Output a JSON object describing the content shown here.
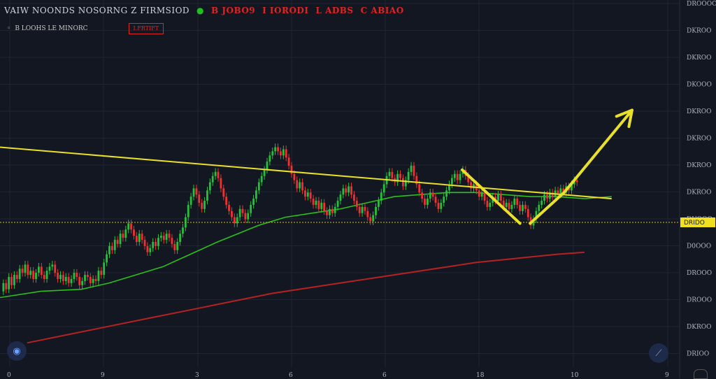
{
  "header": {
    "symbol": "VAIW NOONDS NOSORNG Z FIRMSIOD",
    "fields": [
      "B JOBO9",
      "I IORODI",
      "L ADBS",
      "C ABIAO"
    ],
    "indicator_label": "B LOOHS LE MINORC",
    "indicator_badge": "I.FRTIFT"
  },
  "colors": {
    "background": "#131722",
    "grid": "#1f2433",
    "bull": "#26c13b",
    "bear": "#ef3131",
    "ma_fast": "#2cc01a",
    "ma_slow": "#b62222",
    "trendline": "#e8e02a",
    "support": "#b0a020",
    "price_tag": "#f0e020"
  },
  "icons": {
    "left_button": "eye-icon",
    "right_button": "ruler-icon"
  },
  "chart_data": {
    "type": "candlestick",
    "x_tick_labels": [
      "0",
      "9",
      "3",
      "6",
      "6",
      "18",
      "10",
      "9"
    ],
    "y_tick_labels": [
      "DROOOO",
      "DKROO",
      "DKROO",
      "DKOOO",
      "DKROO",
      "DKROO",
      "DKROO",
      "DKROO",
      "DUOOO",
      "D0OOO",
      "DROOO",
      "DROOO",
      "DKROO",
      "DRIOO"
    ],
    "price_tag": "DRIDO",
    "ylim": [
      0,
      100
    ],
    "xlim": [
      0,
      1000
    ],
    "candles": [
      {
        "x": 5,
        "o": 30,
        "c": 34
      },
      {
        "x": 9,
        "o": 34,
        "c": 31
      },
      {
        "x": 13,
        "o": 31,
        "c": 37
      },
      {
        "x": 17,
        "o": 37,
        "c": 33
      },
      {
        "x": 21,
        "o": 33,
        "c": 38
      },
      {
        "x": 25,
        "o": 38,
        "c": 36
      },
      {
        "x": 29,
        "o": 36,
        "c": 41
      },
      {
        "x": 33,
        "o": 41,
        "c": 39
      },
      {
        "x": 37,
        "o": 39,
        "c": 43
      },
      {
        "x": 41,
        "o": 43,
        "c": 38
      },
      {
        "x": 45,
        "o": 38,
        "c": 40
      },
      {
        "x": 49,
        "o": 40,
        "c": 36
      },
      {
        "x": 53,
        "o": 36,
        "c": 39
      },
      {
        "x": 57,
        "o": 39,
        "c": 42
      },
      {
        "x": 61,
        "o": 42,
        "c": 38
      },
      {
        "x": 65,
        "o": 38,
        "c": 36
      },
      {
        "x": 69,
        "o": 36,
        "c": 40
      },
      {
        "x": 73,
        "o": 40,
        "c": 42
      },
      {
        "x": 77,
        "o": 42,
        "c": 43
      },
      {
        "x": 81,
        "o": 43,
        "c": 39
      },
      {
        "x": 85,
        "o": 39,
        "c": 36
      },
      {
        "x": 89,
        "o": 36,
        "c": 38
      },
      {
        "x": 93,
        "o": 38,
        "c": 35
      },
      {
        "x": 97,
        "o": 35,
        "c": 37
      },
      {
        "x": 101,
        "o": 37,
        "c": 34
      },
      {
        "x": 105,
        "o": 34,
        "c": 36
      },
      {
        "x": 109,
        "o": 36,
        "c": 39
      },
      {
        "x": 113,
        "o": 39,
        "c": 37
      },
      {
        "x": 117,
        "o": 37,
        "c": 33
      },
      {
        "x": 121,
        "o": 33,
        "c": 35
      },
      {
        "x": 125,
        "o": 35,
        "c": 38
      },
      {
        "x": 129,
        "o": 38,
        "c": 37
      },
      {
        "x": 133,
        "o": 37,
        "c": 34
      },
      {
        "x": 137,
        "o": 34,
        "c": 36
      },
      {
        "x": 141,
        "o": 36,
        "c": 35
      },
      {
        "x": 145,
        "o": 35,
        "c": 40
      },
      {
        "x": 149,
        "o": 40,
        "c": 38
      },
      {
        "x": 153,
        "o": 38,
        "c": 44
      },
      {
        "x": 157,
        "o": 44,
        "c": 48
      },
      {
        "x": 161,
        "o": 48,
        "c": 52
      },
      {
        "x": 165,
        "o": 52,
        "c": 50
      },
      {
        "x": 169,
        "o": 50,
        "c": 55
      },
      {
        "x": 173,
        "o": 55,
        "c": 53
      },
      {
        "x": 177,
        "o": 53,
        "c": 58
      },
      {
        "x": 181,
        "o": 58,
        "c": 56
      },
      {
        "x": 185,
        "o": 56,
        "c": 60
      },
      {
        "x": 189,
        "o": 60,
        "c": 63
      },
      {
        "x": 193,
        "o": 63,
        "c": 60
      },
      {
        "x": 197,
        "o": 60,
        "c": 57
      },
      {
        "x": 201,
        "o": 57,
        "c": 54
      },
      {
        "x": 205,
        "o": 54,
        "c": 58
      },
      {
        "x": 209,
        "o": 58,
        "c": 55
      },
      {
        "x": 213,
        "o": 55,
        "c": 52
      },
      {
        "x": 217,
        "o": 52,
        "c": 49
      },
      {
        "x": 221,
        "o": 49,
        "c": 51
      },
      {
        "x": 225,
        "o": 51,
        "c": 54
      },
      {
        "x": 229,
        "o": 54,
        "c": 52
      },
      {
        "x": 233,
        "o": 52,
        "c": 56
      },
      {
        "x": 237,
        "o": 56,
        "c": 57
      },
      {
        "x": 241,
        "o": 57,
        "c": 55
      },
      {
        "x": 245,
        "o": 55,
        "c": 58
      },
      {
        "x": 249,
        "o": 58,
        "c": 56
      },
      {
        "x": 253,
        "o": 56,
        "c": 53
      },
      {
        "x": 257,
        "o": 53,
        "c": 50
      },
      {
        "x": 261,
        "o": 50,
        "c": 54
      },
      {
        "x": 265,
        "o": 54,
        "c": 58
      },
      {
        "x": 269,
        "o": 58,
        "c": 61
      },
      {
        "x": 273,
        "o": 61,
        "c": 66
      },
      {
        "x": 277,
        "o": 66,
        "c": 72
      },
      {
        "x": 281,
        "o": 72,
        "c": 76
      },
      {
        "x": 285,
        "o": 76,
        "c": 80
      },
      {
        "x": 289,
        "o": 80,
        "c": 77
      },
      {
        "x": 293,
        "o": 77,
        "c": 73
      },
      {
        "x": 297,
        "o": 73,
        "c": 70
      },
      {
        "x": 301,
        "o": 70,
        "c": 74
      },
      {
        "x": 305,
        "o": 74,
        "c": 79
      },
      {
        "x": 309,
        "o": 79,
        "c": 83
      },
      {
        "x": 313,
        "o": 83,
        "c": 86
      },
      {
        "x": 317,
        "o": 86,
        "c": 88
      },
      {
        "x": 321,
        "o": 88,
        "c": 85
      },
      {
        "x": 325,
        "o": 85,
        "c": 80
      },
      {
        "x": 329,
        "o": 80,
        "c": 76
      },
      {
        "x": 333,
        "o": 76,
        "c": 72
      },
      {
        "x": 337,
        "o": 72,
        "c": 69
      },
      {
        "x": 341,
        "o": 69,
        "c": 66
      },
      {
        "x": 345,
        "o": 66,
        "c": 63
      },
      {
        "x": 349,
        "o": 63,
        "c": 66
      },
      {
        "x": 353,
        "o": 66,
        "c": 70
      },
      {
        "x": 357,
        "o": 70,
        "c": 68
      },
      {
        "x": 361,
        "o": 68,
        "c": 65
      },
      {
        "x": 365,
        "o": 65,
        "c": 68
      },
      {
        "x": 369,
        "o": 68,
        "c": 72
      },
      {
        "x": 373,
        "o": 72,
        "c": 75
      },
      {
        "x": 377,
        "o": 75,
        "c": 79
      },
      {
        "x": 381,
        "o": 79,
        "c": 83
      },
      {
        "x": 385,
        "o": 83,
        "c": 86
      },
      {
        "x": 389,
        "o": 86,
        "c": 89
      },
      {
        "x": 393,
        "o": 89,
        "c": 93
      },
      {
        "x": 397,
        "o": 93,
        "c": 96
      },
      {
        "x": 401,
        "o": 96,
        "c": 98
      },
      {
        "x": 405,
        "o": 98,
        "c": 100
      },
      {
        "x": 409,
        "o": 100,
        "c": 98
      },
      {
        "x": 413,
        "o": 98,
        "c": 96
      },
      {
        "x": 417,
        "o": 96,
        "c": 99
      },
      {
        "x": 421,
        "o": 99,
        "c": 95
      },
      {
        "x": 425,
        "o": 95,
        "c": 91
      },
      {
        "x": 429,
        "o": 91,
        "c": 87
      },
      {
        "x": 433,
        "o": 87,
        "c": 84
      },
      {
        "x": 437,
        "o": 84,
        "c": 80
      },
      {
        "x": 441,
        "o": 80,
        "c": 83
      },
      {
        "x": 445,
        "o": 83,
        "c": 79
      },
      {
        "x": 449,
        "o": 79,
        "c": 76
      },
      {
        "x": 453,
        "o": 76,
        "c": 78
      },
      {
        "x": 457,
        "o": 78,
        "c": 75
      },
      {
        "x": 461,
        "o": 75,
        "c": 72
      },
      {
        "x": 465,
        "o": 72,
        "c": 74
      },
      {
        "x": 469,
        "o": 74,
        "c": 70
      },
      {
        "x": 473,
        "o": 70,
        "c": 73
      },
      {
        "x": 477,
        "o": 73,
        "c": 69
      },
      {
        "x": 481,
        "o": 69,
        "c": 67
      },
      {
        "x": 485,
        "o": 67,
        "c": 70
      },
      {
        "x": 489,
        "o": 70,
        "c": 68
      },
      {
        "x": 493,
        "o": 68,
        "c": 71
      },
      {
        "x": 497,
        "o": 71,
        "c": 74
      },
      {
        "x": 501,
        "o": 74,
        "c": 77
      },
      {
        "x": 505,
        "o": 77,
        "c": 80
      },
      {
        "x": 509,
        "o": 80,
        "c": 78
      },
      {
        "x": 513,
        "o": 78,
        "c": 81
      },
      {
        "x": 517,
        "o": 81,
        "c": 77
      },
      {
        "x": 521,
        "o": 77,
        "c": 74
      },
      {
        "x": 525,
        "o": 74,
        "c": 71
      },
      {
        "x": 529,
        "o": 71,
        "c": 68
      },
      {
        "x": 533,
        "o": 68,
        "c": 71
      },
      {
        "x": 537,
        "o": 71,
        "c": 69
      },
      {
        "x": 541,
        "o": 69,
        "c": 66
      },
      {
        "x": 545,
        "o": 66,
        "c": 64
      },
      {
        "x": 549,
        "o": 64,
        "c": 67
      },
      {
        "x": 553,
        "o": 67,
        "c": 71
      },
      {
        "x": 557,
        "o": 71,
        "c": 74
      },
      {
        "x": 561,
        "o": 74,
        "c": 78
      },
      {
        "x": 565,
        "o": 78,
        "c": 82
      },
      {
        "x": 569,
        "o": 82,
        "c": 86
      },
      {
        "x": 573,
        "o": 86,
        "c": 88
      },
      {
        "x": 577,
        "o": 88,
        "c": 85
      },
      {
        "x": 581,
        "o": 85,
        "c": 83
      },
      {
        "x": 585,
        "o": 83,
        "c": 87
      },
      {
        "x": 589,
        "o": 87,
        "c": 85
      },
      {
        "x": 593,
        "o": 85,
        "c": 81
      },
      {
        "x": 597,
        "o": 81,
        "c": 84
      },
      {
        "x": 601,
        "o": 84,
        "c": 88
      },
      {
        "x": 605,
        "o": 88,
        "c": 91
      },
      {
        "x": 609,
        "o": 91,
        "c": 86
      },
      {
        "x": 613,
        "o": 86,
        "c": 82
      },
      {
        "x": 617,
        "o": 82,
        "c": 78
      },
      {
        "x": 621,
        "o": 78,
        "c": 75
      },
      {
        "x": 625,
        "o": 75,
        "c": 72
      },
      {
        "x": 629,
        "o": 72,
        "c": 75
      },
      {
        "x": 633,
        "o": 75,
        "c": 78
      },
      {
        "x": 637,
        "o": 78,
        "c": 76
      },
      {
        "x": 641,
        "o": 76,
        "c": 73
      },
      {
        "x": 645,
        "o": 73,
        "c": 70
      },
      {
        "x": 649,
        "o": 70,
        "c": 73
      },
      {
        "x": 653,
        "o": 73,
        "c": 76
      },
      {
        "x": 657,
        "o": 76,
        "c": 79
      },
      {
        "x": 661,
        "o": 79,
        "c": 82
      },
      {
        "x": 665,
        "o": 82,
        "c": 85
      },
      {
        "x": 669,
        "o": 85,
        "c": 87
      },
      {
        "x": 673,
        "o": 87,
        "c": 84
      },
      {
        "x": 677,
        "o": 84,
        "c": 87
      },
      {
        "x": 681,
        "o": 87,
        "c": 89
      },
      {
        "x": 685,
        "o": 89,
        "c": 86
      },
      {
        "x": 689,
        "o": 86,
        "c": 83
      },
      {
        "x": 693,
        "o": 83,
        "c": 80
      },
      {
        "x": 697,
        "o": 80,
        "c": 82
      },
      {
        "x": 701,
        "o": 82,
        "c": 79
      },
      {
        "x": 705,
        "o": 79,
        "c": 76
      },
      {
        "x": 709,
        "o": 76,
        "c": 78
      },
      {
        "x": 713,
        "o": 78,
        "c": 74
      },
      {
        "x": 717,
        "o": 74,
        "c": 71
      },
      {
        "x": 721,
        "o": 71,
        "c": 73
      },
      {
        "x": 725,
        "o": 73,
        "c": 76
      },
      {
        "x": 729,
        "o": 76,
        "c": 74
      },
      {
        "x": 733,
        "o": 74,
        "c": 77
      },
      {
        "x": 737,
        "o": 77,
        "c": 74
      },
      {
        "x": 741,
        "o": 74,
        "c": 71
      },
      {
        "x": 745,
        "o": 71,
        "c": 73
      },
      {
        "x": 749,
        "o": 73,
        "c": 70
      },
      {
        "x": 753,
        "o": 70,
        "c": 72
      },
      {
        "x": 757,
        "o": 72,
        "c": 75
      },
      {
        "x": 761,
        "o": 75,
        "c": 72
      },
      {
        "x": 765,
        "o": 72,
        "c": 69
      },
      {
        "x": 769,
        "o": 69,
        "c": 72
      },
      {
        "x": 773,
        "o": 72,
        "c": 70
      },
      {
        "x": 777,
        "o": 70,
        "c": 66
      },
      {
        "x": 781,
        "o": 66,
        "c": 62
      },
      {
        "x": 785,
        "o": 62,
        "c": 65
      },
      {
        "x": 789,
        "o": 65,
        "c": 69
      },
      {
        "x": 793,
        "o": 69,
        "c": 72
      },
      {
        "x": 797,
        "o": 72,
        "c": 74
      },
      {
        "x": 801,
        "o": 74,
        "c": 77
      },
      {
        "x": 805,
        "o": 77,
        "c": 75
      },
      {
        "x": 809,
        "o": 75,
        "c": 78
      },
      {
        "x": 813,
        "o": 78,
        "c": 76
      },
      {
        "x": 817,
        "o": 76,
        "c": 79
      },
      {
        "x": 821,
        "o": 79,
        "c": 77
      },
      {
        "x": 825,
        "o": 77,
        "c": 80
      },
      {
        "x": 829,
        "o": 80,
        "c": 78
      },
      {
        "x": 833,
        "o": 78,
        "c": 81
      },
      {
        "x": 837,
        "o": 81,
        "c": 79
      },
      {
        "x": 841,
        "o": 79,
        "c": 82
      },
      {
        "x": 845,
        "o": 82,
        "c": 84
      },
      {
        "x": 849,
        "o": 84,
        "c": 83
      }
    ],
    "ma_fast": [
      [
        0,
        27
      ],
      [
        60,
        30
      ],
      [
        120,
        31
      ],
      [
        160,
        34
      ],
      [
        200,
        38
      ],
      [
        240,
        42
      ],
      [
        280,
        48
      ],
      [
        320,
        54
      ],
      [
        350,
        58
      ],
      [
        380,
        62
      ],
      [
        420,
        66
      ],
      [
        460,
        68
      ],
      [
        500,
        70
      ],
      [
        540,
        73
      ],
      [
        580,
        76
      ],
      [
        620,
        77
      ],
      [
        660,
        78
      ],
      [
        700,
        78
      ],
      [
        740,
        77
      ],
      [
        780,
        76
      ],
      [
        820,
        76
      ],
      [
        860,
        75
      ],
      [
        900,
        76
      ]
    ],
    "ma_slow": [
      [
        40,
        5
      ],
      [
        100,
        9
      ],
      [
        160,
        13
      ],
      [
        220,
        17
      ],
      [
        280,
        21
      ],
      [
        340,
        25
      ],
      [
        400,
        29
      ],
      [
        460,
        32
      ],
      [
        520,
        35
      ],
      [
        580,
        38
      ],
      [
        640,
        41
      ],
      [
        700,
        44
      ],
      [
        760,
        46
      ],
      [
        820,
        48
      ],
      [
        860,
        49
      ]
    ],
    "trendline": [
      [
        0,
        100
      ],
      [
        900,
        75
      ]
    ],
    "support_level": 63.5,
    "pattern_lines": [
      [
        [
          680,
          89
        ],
        [
          765,
          63
        ]
      ],
      [
        [
          780,
          63
        ],
        [
          830,
          78
        ]
      ]
    ],
    "arrow": [
      [
        830,
        78
      ],
      [
        930,
        118
      ]
    ]
  }
}
